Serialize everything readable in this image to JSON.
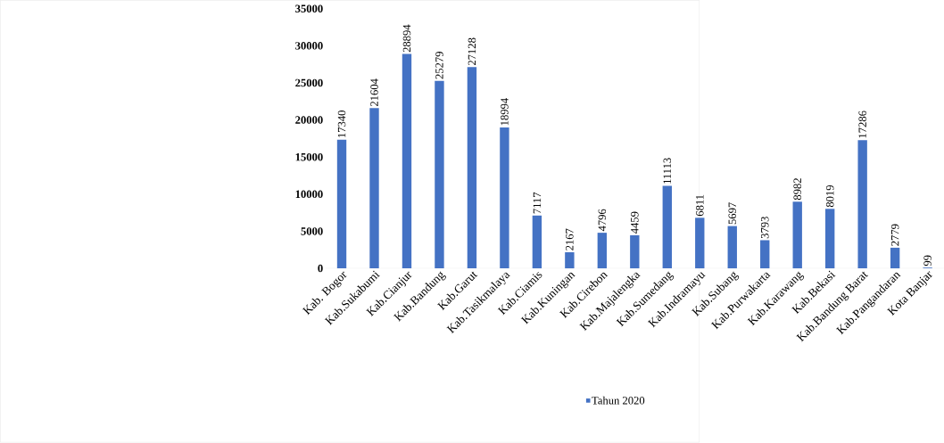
{
  "chart_data": {
    "type": "bar",
    "categories": [
      "Kab. Bogor",
      "Kab.Sukabumi",
      "Kab.Cianjur",
      "Kab.Bandung",
      "Kab.Garut",
      "Kab.Tasikmalaya",
      "Kab.Ciamis",
      "Kab.Kuningan",
      "Kab.Cirebon",
      "Kab.Majalengka",
      "Kab.Sumedang",
      "Kab.Indramayu",
      "Kab.Subang",
      "Kab.Purwakarta",
      "Kab.Karawang",
      "Kab.Bekasi",
      "Kab.Bandung Barat",
      "Kab.Pangandaran",
      "Kota Banjar"
    ],
    "series": [
      {
        "name": "Tahun 2020",
        "color": "#4472c4",
        "values": [
          17340,
          21604,
          28894,
          25279,
          27128,
          18994,
          7117,
          2167,
          4796,
          4459,
          11113,
          6811,
          5697,
          3793,
          8982,
          8019,
          17286,
          2779,
          99
        ]
      }
    ],
    "ylim": [
      0,
      35000
    ],
    "yticks": [
      0,
      5000,
      10000,
      15000,
      20000,
      25000,
      30000,
      35000
    ],
    "data_labels": true,
    "legend": "bottom",
    "grid": false
  }
}
